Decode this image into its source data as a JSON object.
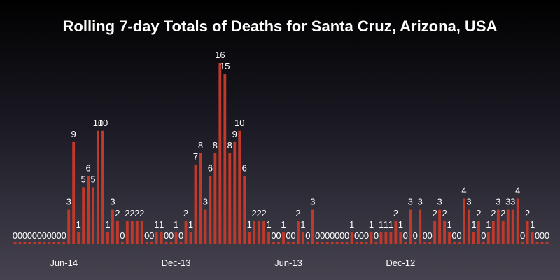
{
  "chart_data": {
    "type": "bar",
    "title": "Rolling 7-day Totals of Deaths for Santa Cruz, Arizona, USA",
    "xlabel": "",
    "ylabel": "",
    "ylim": [
      0,
      16
    ],
    "grid": false,
    "legend": "none",
    "bar_color": "#c0392b",
    "x_tick_labels": [
      "Jun-14",
      "Dec-13",
      "Jun-13",
      "Dec-12"
    ],
    "values": [
      0,
      0,
      0,
      0,
      0,
      0,
      0,
      0,
      0,
      0,
      0,
      3,
      9,
      1,
      5,
      6,
      5,
      10,
      10,
      1,
      3,
      2,
      0,
      2,
      2,
      2,
      2,
      0,
      0,
      1,
      1,
      0,
      0,
      1,
      0,
      2,
      1,
      7,
      8,
      3,
      6,
      8,
      16,
      15,
      8,
      9,
      10,
      6,
      1,
      2,
      2,
      2,
      1,
      0,
      0,
      1,
      0,
      0,
      2,
      1,
      0,
      3,
      0,
      0,
      0,
      0,
      0,
      0,
      0,
      1,
      0,
      0,
      0,
      1,
      0,
      1,
      1,
      1,
      2,
      1,
      0,
      3,
      0,
      3,
      0,
      0,
      2,
      3,
      2,
      1,
      0,
      0,
      4,
      3,
      1,
      2,
      0,
      1,
      2,
      3,
      2,
      3,
      3,
      4,
      0,
      2,
      1,
      0,
      0,
      0
    ],
    "tick_indices": [
      10,
      33,
      56,
      79
    ]
  }
}
